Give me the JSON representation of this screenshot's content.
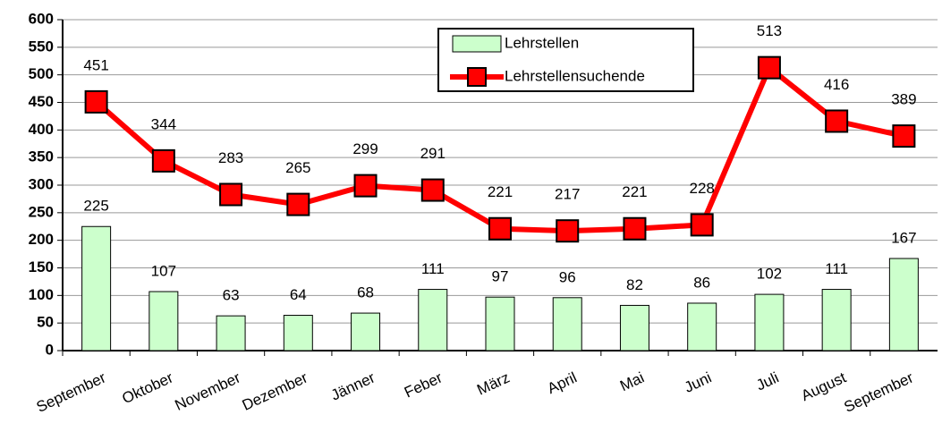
{
  "chart_data": {
    "type": "bar",
    "categories": [
      "September",
      "Oktober",
      "November",
      "Dezember",
      "Jänner",
      "Feber",
      "März",
      "April",
      "Mai",
      "Juni",
      "Juli",
      "August",
      "September"
    ],
    "series": [
      {
        "name": "Lehrstellen",
        "type": "bar",
        "color": "#ccffcc",
        "values": [
          225,
          107,
          63,
          64,
          68,
          111,
          97,
          96,
          82,
          86,
          102,
          111,
          167
        ]
      },
      {
        "name": "Lehrstellensuchende",
        "type": "line",
        "color": "#ff0000",
        "values": [
          451,
          344,
          283,
          265,
          299,
          291,
          221,
          217,
          221,
          228,
          513,
          416,
          389
        ]
      }
    ],
    "ylim": [
      0,
      600
    ],
    "yticks": [
      0,
      50,
      100,
      150,
      200,
      250,
      300,
      350,
      400,
      450,
      500,
      550,
      600
    ],
    "grid": true,
    "legend": "top"
  }
}
